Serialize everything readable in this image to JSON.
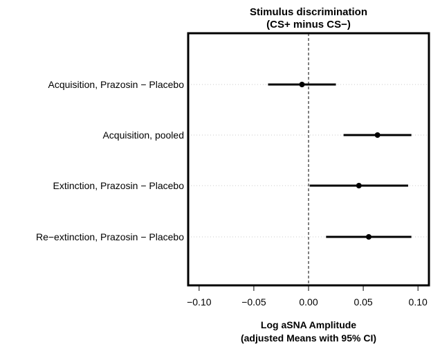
{
  "chart_data": {
    "type": "forest",
    "title": [
      "Stimulus discrimination",
      "(CS+ minus CS−)"
    ],
    "xlabel": [
      "Log aSNA Amplitude",
      "(adjusted Means with 95% CI)"
    ],
    "xlim": [
      -0.11,
      0.11
    ],
    "xticks": [
      -0.1,
      -0.05,
      0.0,
      0.05,
      0.1
    ],
    "xtick_labels": [
      "−0.10",
      "−0.05",
      "0.00",
      "0.05",
      "0.10"
    ],
    "reference_line": 0.0,
    "grid": "dotted horizontal",
    "rows": [
      {
        "label": "Acquisition, Prazosin − Placebo",
        "estimate": -0.006,
        "ci": [
          -0.037,
          0.025
        ]
      },
      {
        "label": "Acquisition, pooled",
        "estimate": 0.063,
        "ci": [
          0.032,
          0.094
        ]
      },
      {
        "label": "Extinction, Prazosin − Placebo",
        "estimate": 0.046,
        "ci": [
          0.001,
          0.091
        ]
      },
      {
        "label": "Re−extinction, Prazosin − Placebo",
        "estimate": 0.055,
        "ci": [
          0.016,
          0.094
        ]
      }
    ]
  }
}
